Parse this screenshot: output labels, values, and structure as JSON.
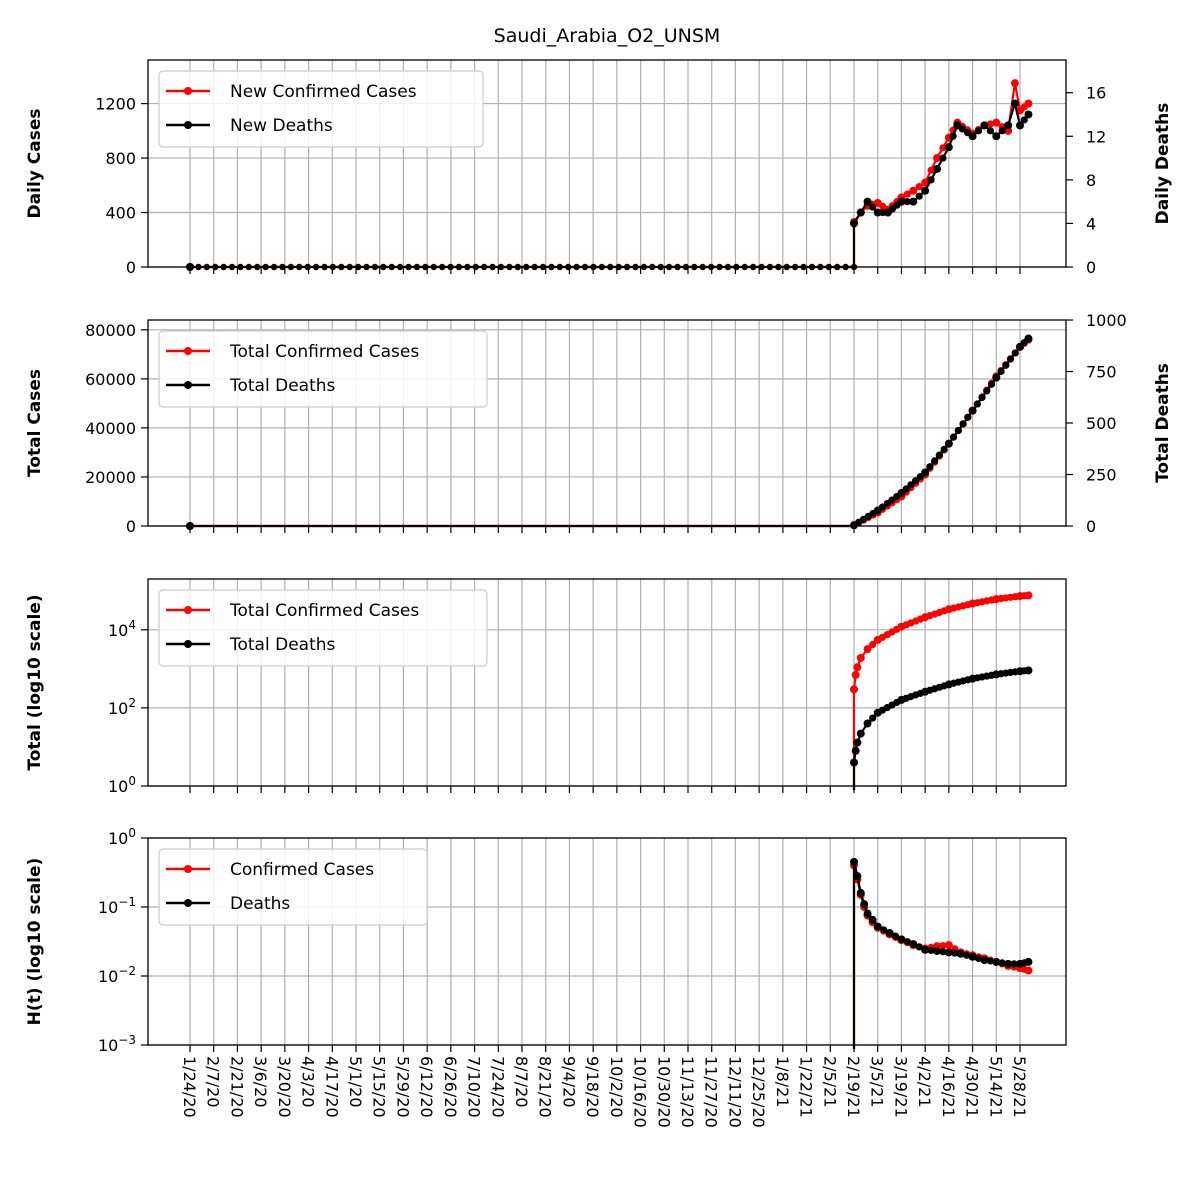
{
  "title": "Saudi_Arabia_O2_UNSM",
  "x_ticks": [
    "1/24/20",
    "2/7/20",
    "2/21/20",
    "3/6/20",
    "3/20/20",
    "4/3/20",
    "4/17/20",
    "5/1/20",
    "5/15/20",
    "5/29/20",
    "6/12/20",
    "6/26/20",
    "7/10/20",
    "7/24/20",
    "8/7/20",
    "8/21/20",
    "9/4/20",
    "9/18/20",
    "10/2/20",
    "10/16/20",
    "10/30/20",
    "11/13/20",
    "11/27/20",
    "12/11/20",
    "12/25/20",
    "1/8/21",
    "1/22/21",
    "2/5/21",
    "2/19/21",
    "3/5/21",
    "3/19/21",
    "4/2/21",
    "4/16/21",
    "4/30/21",
    "5/14/21",
    "5/28/21"
  ],
  "colors": {
    "cases": "#ff0000",
    "deaths": "#000000",
    "grid": "#b0b0b0"
  },
  "chart_data": [
    {
      "type": "line",
      "ylabel": "Daily Cases",
      "ylabel_right": "Daily Deaths",
      "legend": [
        "New Confirmed Cases",
        "New Deaths"
      ],
      "legend_position": "upper-left",
      "ylim": [
        0,
        1520
      ],
      "ylim_right": [
        0,
        19
      ],
      "yticks": [
        0,
        400,
        800,
        1200
      ],
      "yticks_right": [
        0,
        4,
        8,
        12,
        16
      ],
      "series": [
        {
          "name": "New Confirmed Cases",
          "axis": "left",
          "x": [
            "1/24/20",
            "2/19/21",
            "2/23/21",
            "2/27/21",
            "3/5/21",
            "3/11/21",
            "3/19/21",
            "3/26/21",
            "4/2/21",
            "4/9/21",
            "4/16/21",
            "4/21/21",
            "4/30/21",
            "5/7/21",
            "5/14/21",
            "5/21/21",
            "5/25/21",
            "5/28/21",
            "6/2/21"
          ],
          "values": [
            0,
            330,
            400,
            450,
            470,
            420,
            510,
            560,
            620,
            800,
            950,
            1060,
            980,
            1040,
            1060,
            1000,
            1350,
            1150,
            1200
          ]
        },
        {
          "name": "New Deaths",
          "axis": "right",
          "x": [
            "1/24/20",
            "2/19/21",
            "2/23/21",
            "2/27/21",
            "3/5/21",
            "3/11/21",
            "3/19/21",
            "3/26/21",
            "4/2/21",
            "4/9/21",
            "4/16/21",
            "4/21/21",
            "4/30/21",
            "5/7/21",
            "5/14/21",
            "5/21/21",
            "5/25/21",
            "5/28/21",
            "6/2/21"
          ],
          "values": [
            0,
            4,
            5,
            6,
            5,
            5,
            6,
            6,
            7,
            9,
            11,
            13,
            12,
            13,
            12,
            13,
            15,
            13,
            14
          ]
        }
      ]
    },
    {
      "type": "line",
      "ylabel": "Total Cases",
      "ylabel_right": "Total Deaths",
      "legend": [
        "Total Confirmed Cases",
        "Total Deaths"
      ],
      "legend_position": "upper-left",
      "ylim": [
        0,
        84000
      ],
      "ylim_right": [
        0,
        1000
      ],
      "yticks": [
        0,
        20000,
        40000,
        60000,
        80000
      ],
      "yticks_right": [
        0,
        250,
        500,
        750,
        1000
      ],
      "series": [
        {
          "name": "Total Confirmed Cases",
          "axis": "left",
          "x": [
            "1/24/20",
            "2/19/21",
            "3/5/21",
            "3/19/21",
            "4/2/21",
            "4/16/21",
            "4/30/21",
            "5/14/21",
            "5/28/21",
            "6/2/21"
          ],
          "values": [
            0,
            300,
            5500,
            12000,
            21000,
            33500,
            47000,
            61000,
            73000,
            76000
          ]
        },
        {
          "name": "Total Deaths",
          "axis": "right",
          "x": [
            "1/24/20",
            "2/19/21",
            "3/5/21",
            "3/19/21",
            "4/2/21",
            "4/16/21",
            "4/30/21",
            "5/14/21",
            "5/28/21",
            "6/2/21"
          ],
          "values": [
            0,
            4,
            75,
            160,
            260,
            400,
            560,
            720,
            870,
            910
          ]
        }
      ]
    },
    {
      "type": "line",
      "ylabel": "Total (log10 scale)",
      "yscale": "log",
      "legend": [
        "Total Confirmed Cases",
        "Total Deaths"
      ],
      "legend_position": "upper-left",
      "ylim": [
        1,
        200000
      ],
      "yticks": [
        "10^0",
        "10^2",
        "10^4"
      ],
      "series": [
        {
          "name": "Total Confirmed Cases",
          "x": [
            "2/19/21",
            "2/20/21",
            "2/21/21",
            "2/23/21",
            "2/27/21",
            "3/5/21",
            "3/19/21",
            "4/2/21",
            "4/16/21",
            "4/30/21",
            "5/14/21",
            "5/28/21",
            "6/2/21"
          ],
          "values": [
            300,
            700,
            1100,
            1900,
            3200,
            5500,
            12000,
            21000,
            33500,
            47000,
            61000,
            73000,
            76000
          ]
        },
        {
          "name": "Total Deaths",
          "x": [
            "2/19/21",
            "2/20/21",
            "2/21/21",
            "2/23/21",
            "2/27/21",
            "3/5/21",
            "3/19/21",
            "4/2/21",
            "4/16/21",
            "4/30/21",
            "5/14/21",
            "5/28/21",
            "6/2/21"
          ],
          "values": [
            4,
            8,
            13,
            22,
            40,
            75,
            160,
            260,
            400,
            560,
            720,
            870,
            910
          ]
        }
      ]
    },
    {
      "type": "line",
      "ylabel": "H(t) (log10 scale)",
      "yscale": "log",
      "legend": [
        "Confirmed Cases",
        "Deaths"
      ],
      "legend_position": "upper-left",
      "ylim": [
        0.001,
        1
      ],
      "yticks": [
        "10^-3",
        "10^-2",
        "10^-1",
        "10^0"
      ],
      "series": [
        {
          "name": "Confirmed Cases",
          "x": [
            "2/19/21",
            "2/21/21",
            "2/23/21",
            "2/25/21",
            "2/27/21",
            "3/2/21",
            "3/5/21",
            "3/12/21",
            "3/19/21",
            "3/26/21",
            "4/2/21",
            "4/9/21",
            "4/16/21",
            "4/23/21",
            "4/30/21",
            "5/7/21",
            "5/14/21",
            "5/21/21",
            "5/28/21",
            "6/2/21"
          ],
          "values": [
            0.4,
            0.25,
            0.15,
            0.1,
            0.075,
            0.06,
            0.05,
            0.04,
            0.033,
            0.028,
            0.025,
            0.027,
            0.028,
            0.022,
            0.02,
            0.018,
            0.016,
            0.014,
            0.013,
            0.012
          ]
        },
        {
          "name": "Deaths",
          "x": [
            "2/19/21",
            "2/21/21",
            "2/23/21",
            "2/25/21",
            "2/27/21",
            "3/2/21",
            "3/5/21",
            "3/12/21",
            "3/19/21",
            "3/26/21",
            "4/2/21",
            "4/9/21",
            "4/16/21",
            "4/23/21",
            "4/30/21",
            "5/7/21",
            "5/14/21",
            "5/21/21",
            "5/28/21",
            "6/2/21"
          ],
          "values": [
            0.45,
            0.28,
            0.16,
            0.11,
            0.08,
            0.065,
            0.052,
            0.042,
            0.034,
            0.029,
            0.024,
            0.023,
            0.022,
            0.021,
            0.019,
            0.017,
            0.016,
            0.015,
            0.015,
            0.016
          ]
        }
      ]
    }
  ]
}
